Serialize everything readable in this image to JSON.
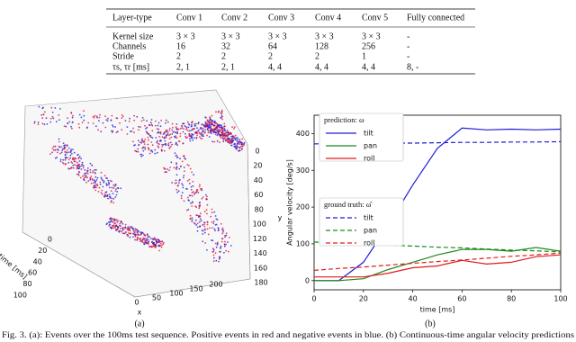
{
  "table": {
    "header": [
      "Layer-type",
      "Conv 1",
      "Conv 2",
      "Conv 3",
      "Conv 4",
      "Conv 5",
      "Fully connected"
    ],
    "rows": [
      [
        "Kernel size",
        "3 × 3",
        "3 × 3",
        "3 × 3",
        "3 × 3",
        "3 × 3",
        "-"
      ],
      [
        "Channels",
        "16",
        "32",
        "64",
        "128",
        "256",
        "-"
      ],
      [
        "Stride",
        "2",
        "2",
        "2",
        "2",
        "1",
        "-"
      ],
      [
        "τs, τr [ms]",
        "2, 1",
        "2, 1",
        "4, 4",
        "4, 4",
        "4, 4",
        "8, -"
      ]
    ]
  },
  "figure_a": {
    "label": "(a)",
    "time_label": "time [ms]",
    "x_label": "x",
    "y_label": "y",
    "time_ticks": [
      0,
      20,
      40,
      60,
      80,
      100
    ],
    "x_ticks": [
      0,
      50,
      100,
      150,
      200
    ],
    "y_ticks": [
      0,
      20,
      40,
      60,
      80,
      100,
      120,
      140,
      160,
      180
    ],
    "positive_color": "#e8102a",
    "negative_color": "#2222dd"
  },
  "chart_data": {
    "type": "line",
    "label": "(b)",
    "x_label": "time [ms]",
    "y_label": "Angular velocity [deg/s]",
    "x": [
      0,
      10,
      20,
      30,
      40,
      50,
      60,
      70,
      80,
      90,
      100
    ],
    "xlim": [
      0,
      100
    ],
    "xticks": [
      0,
      20,
      40,
      60,
      80,
      100
    ],
    "ylim": [
      -25,
      450
    ],
    "yticks": [
      0,
      100,
      200,
      300,
      400
    ],
    "prediction": {
      "title": "prediction: ω",
      "dashed": false,
      "series": [
        {
          "name": "tilt",
          "color": "#1f1fd6",
          "values": [
            0,
            0,
            50,
            150,
            260,
            360,
            415,
            410,
            412,
            410,
            412
          ]
        },
        {
          "name": "pan",
          "color": "#1a8a1a",
          "values": [
            0,
            0,
            5,
            30,
            50,
            70,
            85,
            85,
            80,
            90,
            80
          ]
        },
        {
          "name": "roll",
          "color": "#e01b1b",
          "values": [
            10,
            10,
            10,
            20,
            35,
            40,
            55,
            45,
            50,
            65,
            70
          ]
        }
      ]
    },
    "ground_truth": {
      "title": "ground truth: ω̂",
      "dashed": true,
      "series": [
        {
          "name": "tilt",
          "color": "#1f1fd6",
          "values": [
            372,
            373,
            373,
            374,
            374,
            375,
            376,
            376,
            377,
            377,
            378
          ]
        },
        {
          "name": "pan",
          "color": "#1a8a1a",
          "values": [
            105,
            102,
            99,
            97,
            94,
            91,
            89,
            86,
            83,
            81,
            78
          ]
        },
        {
          "name": "roll",
          "color": "#e01b1b",
          "values": [
            28,
            33,
            37,
            42,
            47,
            52,
            56,
            61,
            66,
            70,
            75
          ]
        }
      ]
    }
  },
  "caption": "Fig. 3.   (a): Events over the 100ms test sequence. Positive events in red and negative events in blue. (b) Continuous-time angular velocity predictions"
}
